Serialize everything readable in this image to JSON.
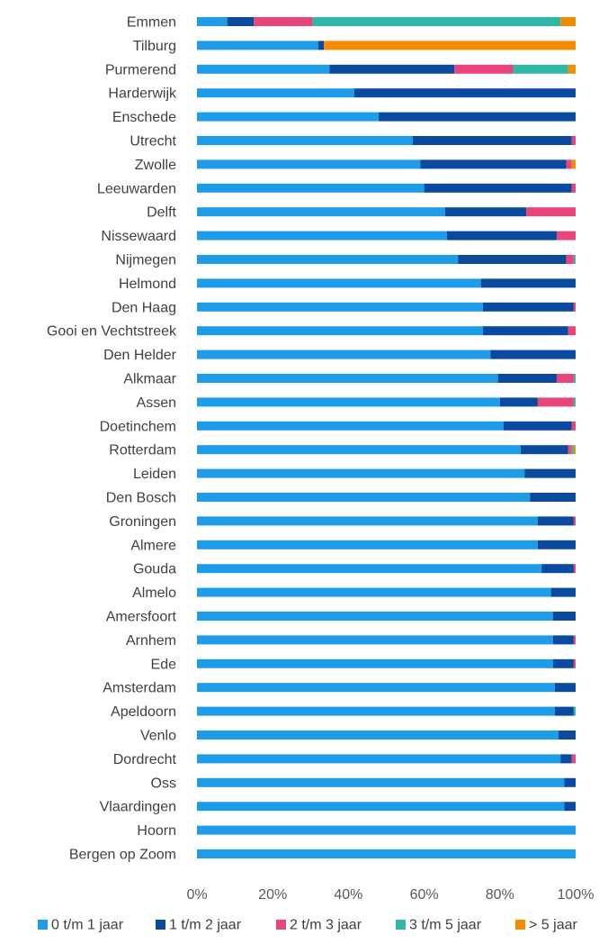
{
  "chart_data": {
    "type": "bar",
    "orientation": "horizontal",
    "stacked": "percent",
    "title": "",
    "xlabel": "",
    "ylabel": "",
    "xlim": [
      0,
      100
    ],
    "x_ticks": [
      "0%",
      "20%",
      "40%",
      "60%",
      "80%",
      "100%"
    ],
    "grid": false,
    "legend_position": "bottom",
    "categories": [
      "Emmen",
      "Tilburg",
      "Purmerend",
      "Harderwijk",
      "Enschede",
      "Utrecht",
      "Zwolle",
      "Leeuwarden",
      "Delft",
      "Nissewaard",
      "Nijmegen",
      "Helmond",
      "Den Haag",
      "Gooi en Vechtstreek",
      "Den Helder",
      "Alkmaar",
      "Assen",
      "Doetinchem",
      "Rotterdam",
      "Leiden",
      "Den Bosch",
      "Groningen",
      "Almere",
      "Gouda",
      "Almelo",
      "Amersfoort",
      "Arnhem",
      "Ede",
      "Amsterdam",
      "Apeldoorn",
      "Venlo",
      "Dordrecht",
      "Oss",
      "Vlaardingen",
      "Hoorn",
      "Bergen op Zoom"
    ],
    "series": [
      {
        "name": "0 t/m 1 jaar",
        "color": "#1e9be9",
        "values": [
          8,
          32,
          35,
          41.5,
          48,
          57,
          59,
          60,
          65.5,
          66,
          69,
          75,
          75.5,
          75.5,
          77.5,
          79.5,
          80,
          81,
          85.5,
          86.5,
          88,
          90,
          90,
          91,
          93.5,
          94,
          94,
          94,
          94.5,
          94.5,
          95.5,
          96,
          97,
          97,
          100,
          100
        ]
      },
      {
        "name": "1 t/m 2 jaar",
        "color": "#0a4a9e",
        "values": [
          7,
          1.5,
          33,
          58.5,
          52,
          42,
          38.5,
          39,
          21.5,
          29,
          28.5,
          25,
          24,
          22.5,
          22.5,
          15.5,
          10,
          18,
          12.5,
          13.5,
          12,
          9.5,
          10,
          8.5,
          6.5,
          6,
          5.5,
          5.5,
          5.5,
          5,
          4.5,
          3,
          3,
          3,
          0,
          0
        ]
      },
      {
        "name": "2 t/m 3 jaar",
        "color": "#e8457a",
        "values": [
          15.5,
          0,
          15.5,
          0,
          0,
          1,
          1.5,
          1,
          13,
          5,
          2,
          0,
          0.5,
          2,
          0,
          4.5,
          9.5,
          1,
          1,
          0,
          0,
          0.5,
          0,
          0.5,
          0,
          0,
          0.5,
          0.5,
          0,
          0,
          0,
          1,
          0,
          0,
          0,
          0
        ]
      },
      {
        "name": "3 t/m 5 jaar",
        "color": "#2fb8a8",
        "values": [
          65.5,
          0,
          14.5,
          0,
          0,
          0,
          0,
          0,
          0,
          0,
          0.5,
          0,
          0,
          0,
          0,
          0.5,
          0.5,
          0,
          0.5,
          0,
          0,
          0,
          0,
          0,
          0,
          0,
          0,
          0,
          0,
          0.5,
          0,
          0,
          0,
          0,
          0,
          0
        ]
      },
      {
        "name": "> 5 jaar",
        "color": "#f28c00",
        "values": [
          4,
          66.5,
          2,
          0,
          0,
          0,
          1,
          0,
          0,
          0,
          0,
          0,
          0,
          0,
          0,
          0,
          0,
          0,
          0.5,
          0,
          0,
          0,
          0,
          0,
          0,
          0,
          0,
          0,
          0,
          0,
          0,
          0,
          0,
          0,
          0,
          0
        ]
      }
    ]
  }
}
